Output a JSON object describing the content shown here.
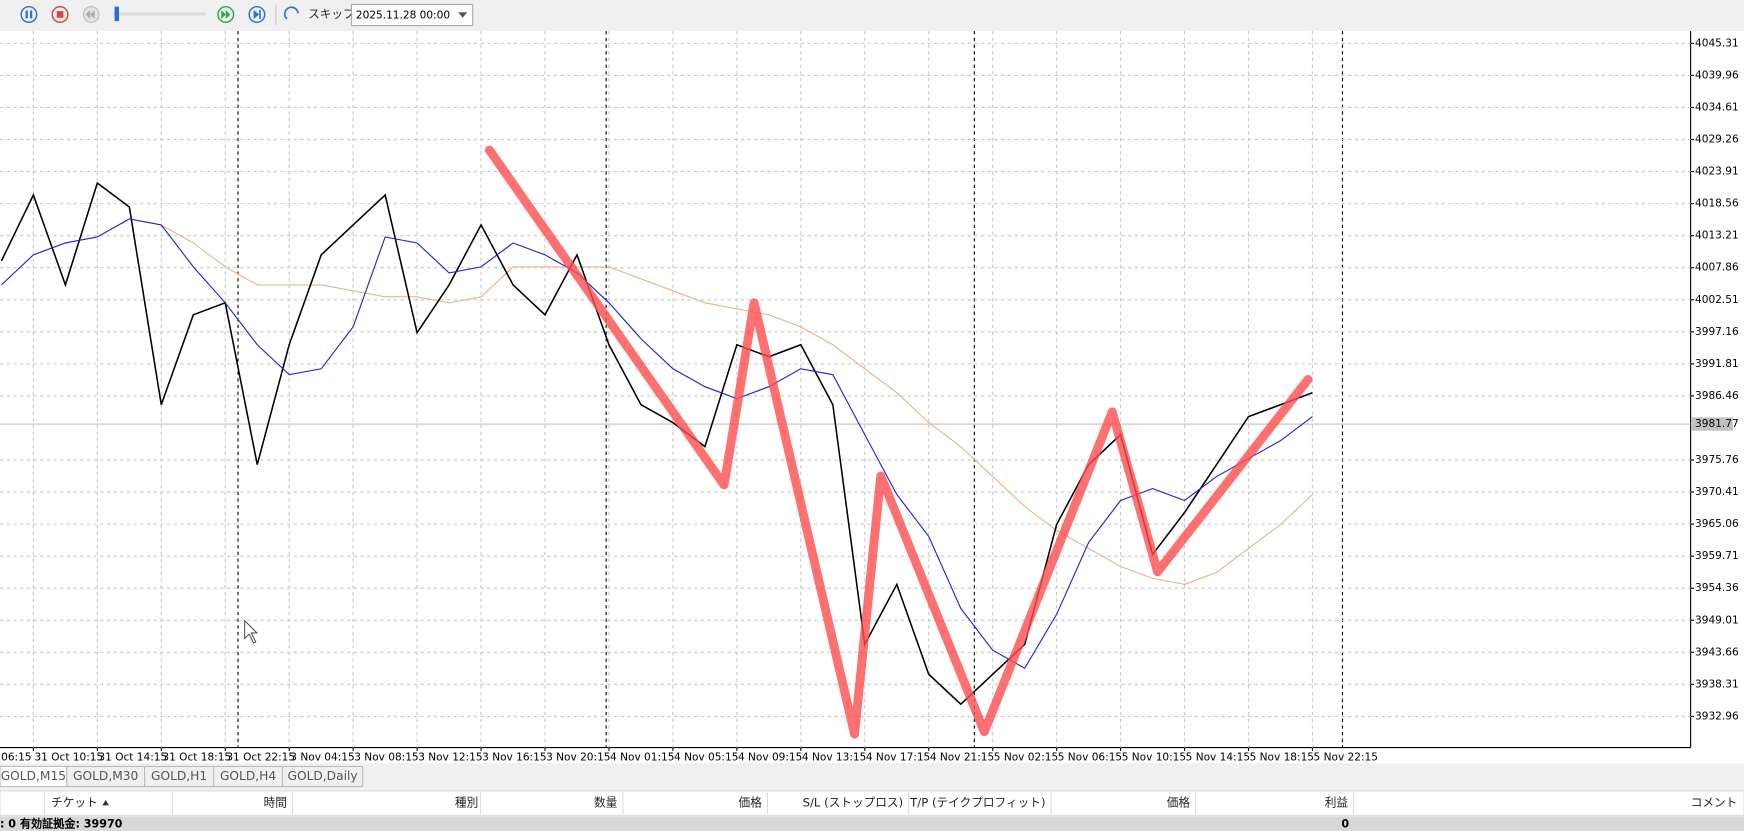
{
  "toolbar": {
    "skip_label": "スキップ",
    "date": "2025.11.28 00:00"
  },
  "chart_data": {
    "type": "line",
    "categories": [
      "06:15",
      "31 Oct 10:15",
      "31 Oct 14:15",
      "31 Oct 18:15",
      "31 Oct 22:15",
      "3 Nov 04:15",
      "3 Nov 08:15",
      "3 Nov 12:15",
      "3 Nov 16:15",
      "3 Nov 20:15",
      "4 Nov 01:15",
      "4 Nov 05:15",
      "4 Nov 09:15",
      "4 Nov 13:15",
      "4 Nov 17:15",
      "4 Nov 21:15",
      "5 Nov 02:15",
      "5 Nov 06:15",
      "5 Nov 10:15",
      "5 Nov 14:15",
      "5 Nov 18:15",
      "5 Nov 22:15"
    ],
    "ylim": [
      3927.76,
      4046.98
    ],
    "yticks": [
      4045.31,
      4039.96,
      4034.61,
      4029.26,
      4023.91,
      4018.56,
      4013.21,
      4007.86,
      4002.51,
      3997.16,
      3991.81,
      3986.46,
      3975.76,
      3970.41,
      3965.06,
      3959.71,
      3954.36,
      3949.01,
      3943.66,
      3938.31,
      3932.96
    ],
    "grid": true,
    "price": {
      "color": "#000000",
      "values": [
        4009,
        4020,
        4005,
        4022,
        4018,
        3985,
        4000,
        4002,
        3975,
        3995,
        4010,
        4015,
        4020,
        3997,
        4005,
        4015,
        4005,
        4000,
        4010,
        3995,
        3985,
        3982,
        3978,
        3995,
        3993,
        3995,
        3985,
        3945,
        3955,
        3940,
        3935,
        3940,
        3945,
        3965,
        3975,
        3980,
        3960,
        3967,
        3975,
        3983,
        3985,
        3987
      ]
    },
    "ma_fast": {
      "color": "#1e1ee6",
      "values": [
        4005,
        4010,
        4012,
        4013,
        4016,
        4015,
        4008,
        4002,
        3995,
        3990,
        3991,
        3998,
        4013,
        4012,
        4007,
        4008,
        4012,
        4010,
        4007,
        4002,
        3996,
        3991,
        3988,
        3986,
        3988,
        3991,
        3990,
        3980,
        3970,
        3963,
        3951,
        3944,
        3941,
        3950,
        3962,
        3969,
        3971,
        3969,
        3973,
        3976,
        3979,
        3983
      ]
    },
    "ma_slow": {
      "color": "#e8b48a",
      "values": [
        null,
        null,
        null,
        null,
        null,
        4015,
        4012,
        4008,
        4005,
        4005,
        4005,
        4004,
        4003,
        4003,
        4002,
        4003,
        4008,
        4008,
        4008,
        4008,
        4006,
        4004,
        4002,
        4001,
        4000,
        3998,
        3995,
        3991,
        3987,
        3982,
        3978,
        3973,
        3968,
        3964,
        3961,
        3958,
        3956,
        3955,
        3957,
        3961,
        3965,
        3970
      ]
    },
    "zigzag": {
      "color": "#ff4d4d",
      "x": [
        8.13,
        11.8,
        12.27,
        13.84,
        14.25,
        15.87,
        17.87,
        18.58,
        20.93
      ],
      "values": [
        4027.5,
        3971.6,
        4002.0,
        3930.0,
        3973.1,
        3930.4,
        3983.8,
        3957.1,
        3989.2
      ]
    },
    "current_price": 3981.77
  },
  "tabs": [
    "GOLD,M15",
    "GOLD,M30",
    "GOLD,H1",
    "GOLD,H4",
    "GOLD,Daily"
  ],
  "table": {
    "headers": [
      "チケット",
      "時間",
      "種別",
      "数量",
      "価格",
      "S/L (ストップロス)",
      "T/P (テイクプロフィット)",
      "価格",
      "利益",
      "コメント"
    ]
  },
  "footer": {
    "equity_text": ": 0  有効証拠金: 39970",
    "profit": "0"
  }
}
